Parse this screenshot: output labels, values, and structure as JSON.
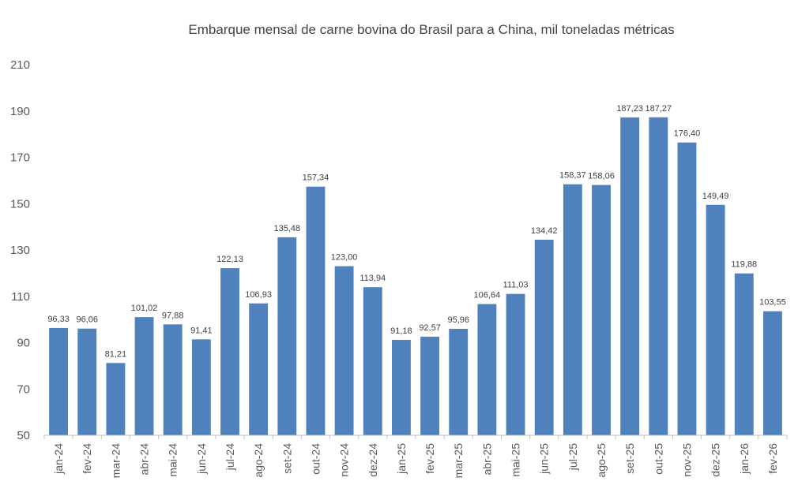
{
  "chart_data": {
    "type": "bar",
    "title": "Embarque mensal de carne bovina do Brasil para a China,  mil toneladas métricas",
    "xlabel": "",
    "ylabel": "",
    "ylim": [
      50,
      210
    ],
    "yticks": [
      50,
      70,
      90,
      110,
      130,
      150,
      170,
      190,
      210
    ],
    "ytick_labels": [
      "50",
      "70",
      "90",
      "110",
      "130",
      "150",
      "170",
      "190",
      "210"
    ],
    "grid": false,
    "legend": "none",
    "bar_color": "#4f81bd",
    "categories": [
      "jan-24",
      "fev-24",
      "mar-24",
      "abr-24",
      "mai-24",
      "jun-24",
      "jul-24",
      "ago-24",
      "set-24",
      "out-24",
      "nov-24",
      "dez-24",
      "jan-25",
      "fev-25",
      "mar-25",
      "abr-25",
      "mai-25",
      "jun-25",
      "jul-25",
      "ago-25",
      "set-25",
      "out-25",
      "nov-25",
      "dez-25",
      "jan-26",
      "fev-26"
    ],
    "values": [
      96.33,
      96.06,
      81.21,
      101.02,
      97.88,
      91.41,
      122.13,
      106.93,
      135.48,
      157.34,
      123.0,
      113.94,
      91.18,
      92.57,
      95.96,
      106.64,
      111.03,
      134.42,
      158.37,
      158.06,
      187.23,
      187.27,
      176.4,
      149.49,
      119.88,
      103.55
    ],
    "data_labels": [
      "96,33",
      "96,06",
      "81,21",
      "101,02",
      "97,88",
      "91,41",
      "122,13",
      "106,93",
      "135,48",
      "157,34",
      "123,00",
      "113,94",
      "91,18",
      "92,57",
      "95,96",
      "106,64",
      "111,03",
      "134,42",
      "158,37",
      "158,06",
      "187,23",
      "187,27",
      "176,40",
      "149,49",
      "119,88",
      "103,55"
    ]
  }
}
